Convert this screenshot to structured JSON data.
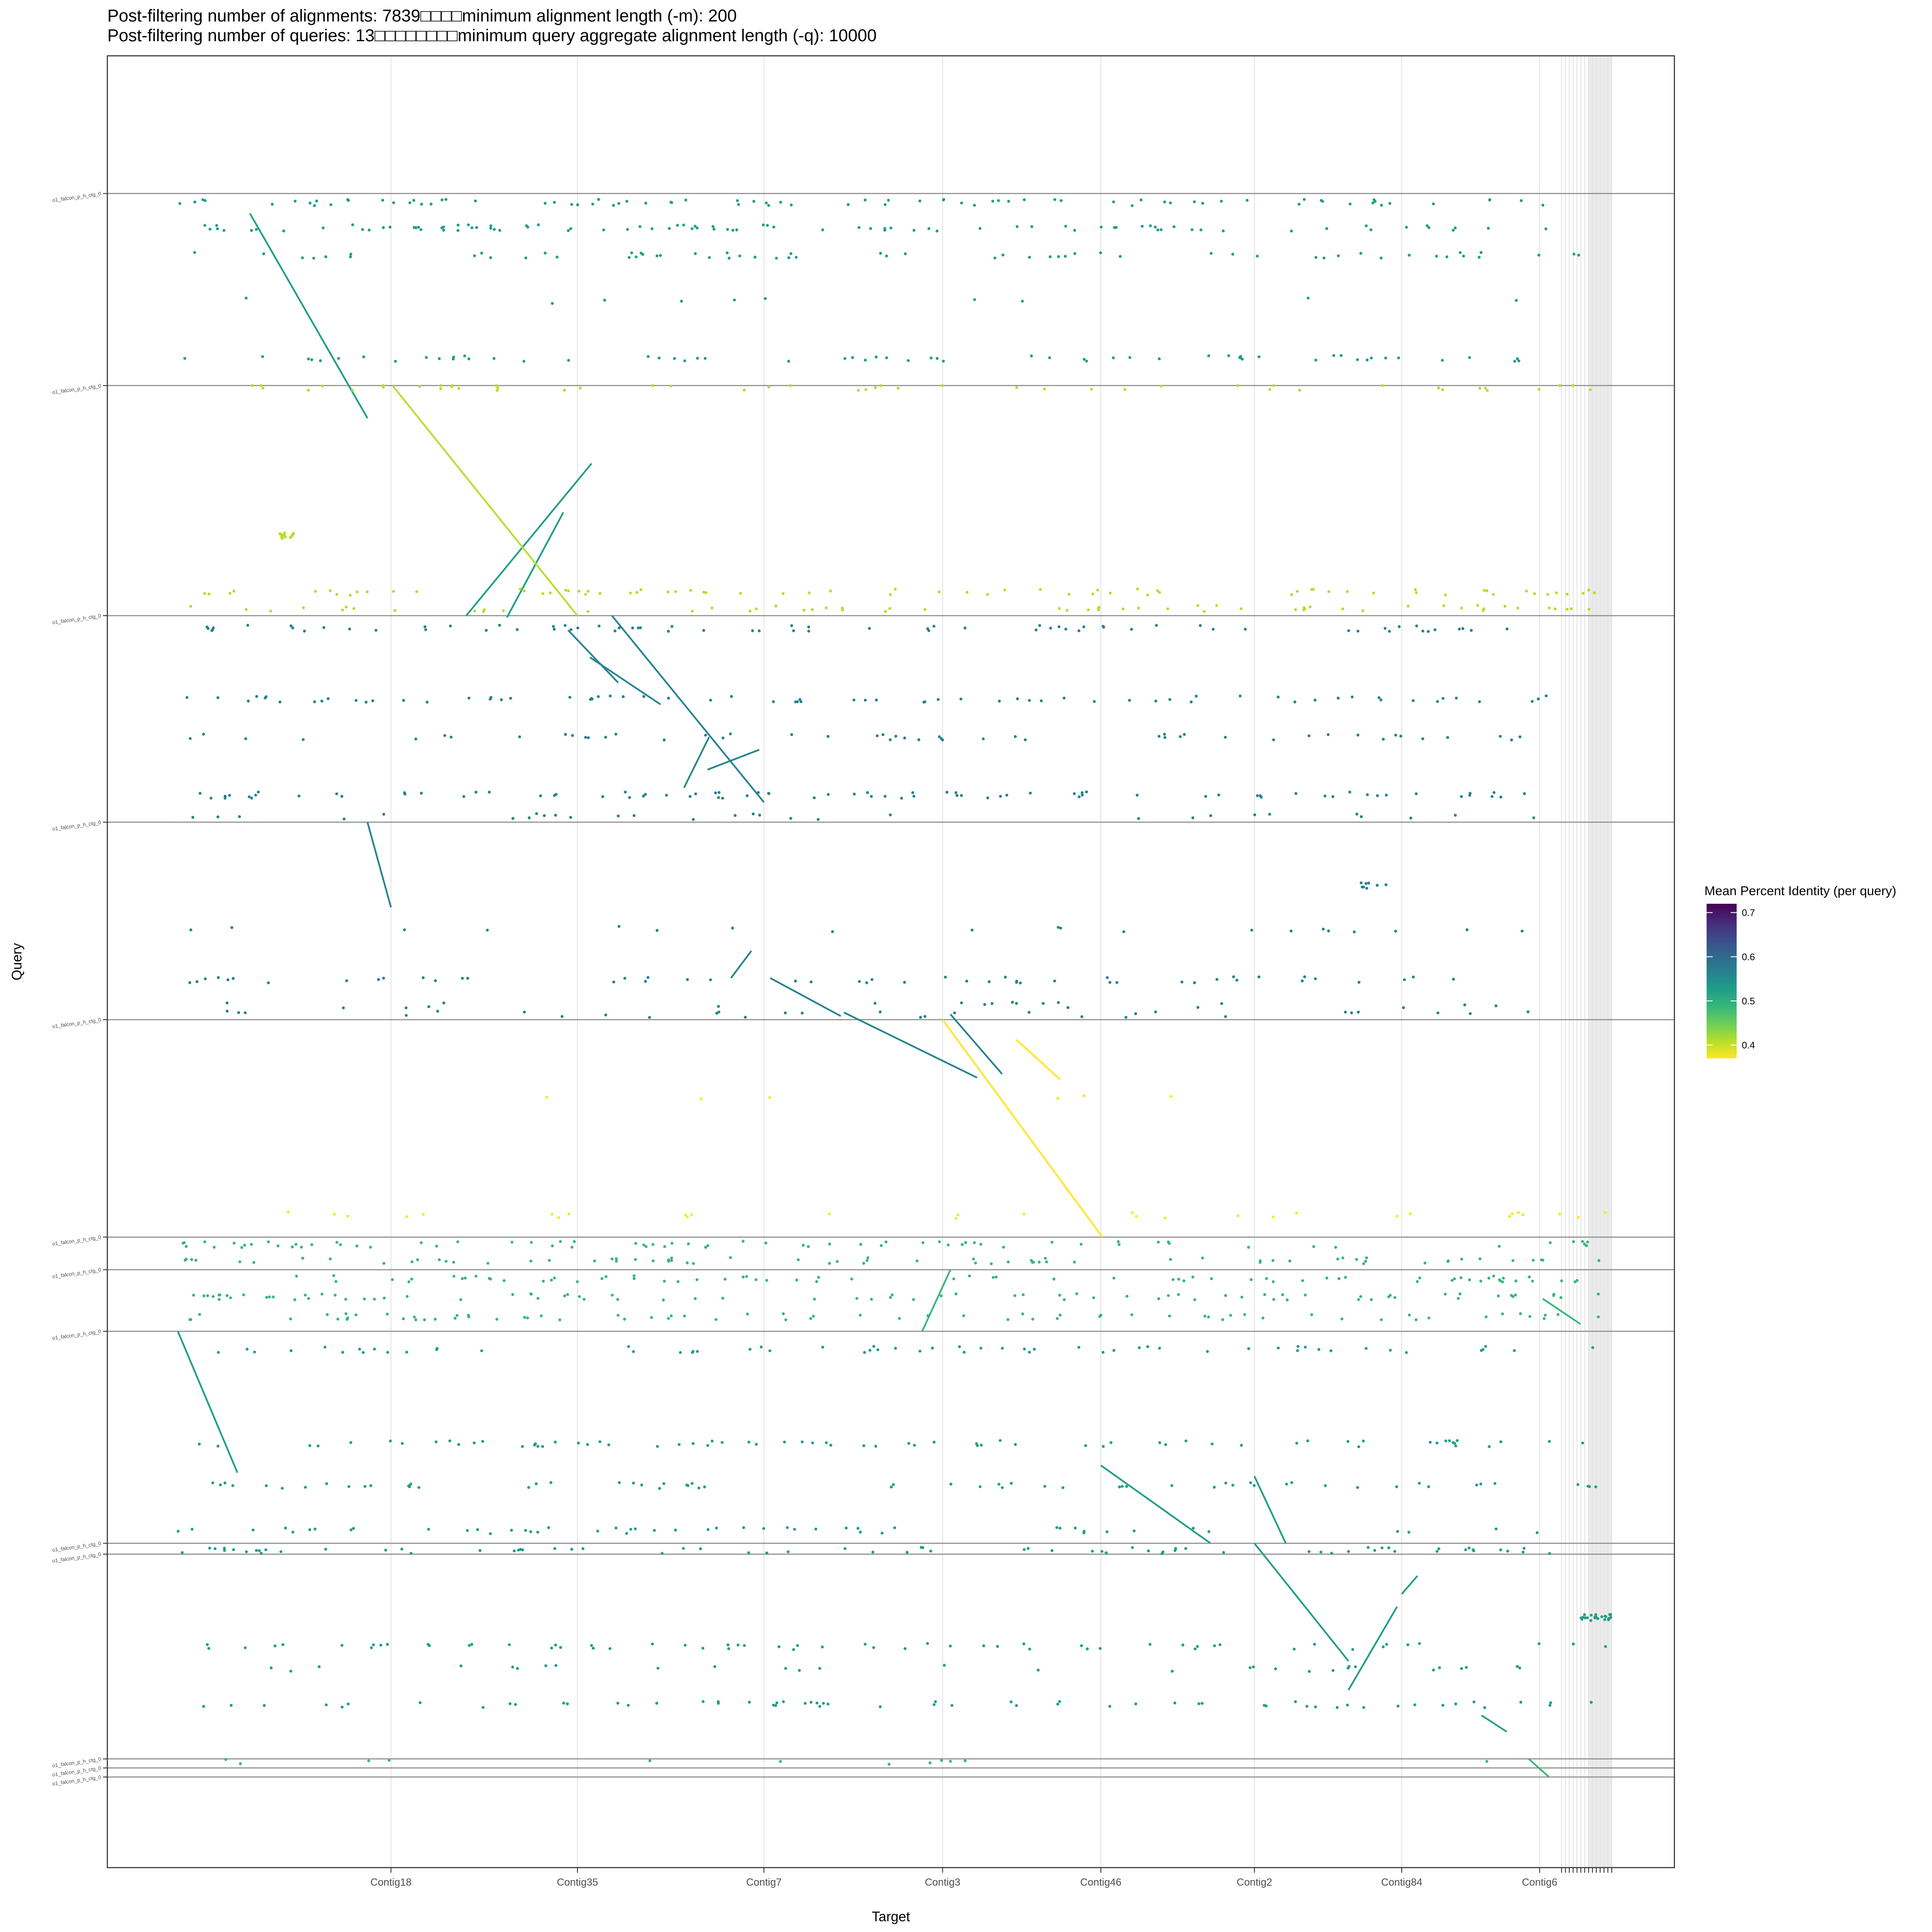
{
  "chart_data": {
    "type": "scatter",
    "title": [
      "Post-filtering number of alignments: 7839□□□□minimum alignment length (-m): 200",
      "Post-filtering number of queries: 13□□□□□□□□minimum query aggregate alignment length (-q): 10000"
    ],
    "xlabel": "Target",
    "ylabel": "Query",
    "xlim": [
      0,
      100
    ],
    "ylim": [
      0,
      100
    ],
    "grid": true,
    "x_ticks": [
      {
        "label": "Contig18",
        "x": 18.1
      },
      {
        "label": "Contig35",
        "x": 30.0
      },
      {
        "label": "Contig7",
        "x": 41.9
      },
      {
        "label": "Contig3",
        "x": 53.3
      },
      {
        "label": "Contig46",
        "x": 63.4
      },
      {
        "label": "Contig2",
        "x": 73.2
      },
      {
        "label": "Contig84",
        "x": 82.6
      },
      {
        "label": "Contig6",
        "x": 91.4
      }
    ],
    "x_dense_tick_start": 92.8,
    "x_dense_tick_end": 96.0,
    "x_dense_tick_count": 14,
    "shaded_region": [
      94.5,
      96.0
    ],
    "query_boundaries": [
      7.6,
      18.2,
      30.9,
      42.3,
      53.2,
      65.2,
      67.0,
      70.4,
      82.1,
      82.7,
      94.0,
      94.5,
      95.0
    ],
    "query_label": "o1_falcon_p_h_ctg_0",
    "legend": {
      "title": "Mean Percent Identity (per query)",
      "placement": "right",
      "min": 0.37,
      "max": 0.72,
      "ticks": [
        0.4,
        0.5,
        0.6,
        0.7
      ],
      "colors": [
        "#fde725",
        "#b5de2b",
        "#6ece58",
        "#35b779",
        "#1f9e89",
        "#26828e",
        "#31688e",
        "#3e4989",
        "#482878",
        "#440154"
      ]
    },
    "series": [
      {
        "query_range": [
          7.6,
          18.2
        ],
        "identity": 0.54,
        "color": "#1f9e89",
        "diagonals": [
          [
            8.7,
            9.1,
            20.0,
            16.6
          ],
          [
            22.5,
            30.9,
            30.9,
            22.9
          ],
          [
            25.2,
            29.1,
            31.0,
            25.5
          ]
        ],
        "bands": [
          [
            13.5,
            4.5,
            95.0,
            10
          ],
          [
            11.0,
            5.3,
            95.0,
            60
          ],
          [
            9.5,
            4.5,
            92.0,
            90
          ],
          [
            8.1,
            4.5,
            92.0,
            80
          ],
          [
            16.7,
            4.5,
            92.0,
            60
          ]
        ]
      },
      {
        "query_range": [
          18.2,
          30.9
        ],
        "identity": 0.405,
        "color": "#b5de2b",
        "diagonals": [
          [
            18.2,
            18.2,
            30.9,
            30.0
          ]
        ],
        "bands": [
          [
            30.5,
            4.5,
            95.0,
            60
          ],
          [
            29.6,
            4.5,
            95.0,
            70
          ],
          [
            18.3,
            4.5,
            95.0,
            50
          ],
          [
            26.5,
            11.0,
            12.0,
            15
          ]
        ]
      },
      {
        "query_range": [
          30.9,
          42.3
        ],
        "identity": 0.61,
        "color": "#26828e",
        "diagonals": [
          [
            30.9,
            32.2,
            41.2,
            41.9
          ],
          [
            31.7,
            29.4,
            34.6,
            32.6
          ],
          [
            33.2,
            30.8,
            35.8,
            35.3
          ],
          [
            37.6,
            38.4,
            40.4,
            36.8
          ],
          [
            38.3,
            41.6,
            39.4,
            38.3
          ]
        ],
        "bands": [
          [
            31.6,
            4.5,
            92.0,
            70
          ],
          [
            35.5,
            4.5,
            92.0,
            70
          ],
          [
            37.6,
            4.5,
            92.0,
            50
          ],
          [
            40.8,
            4.5,
            92.0,
            80
          ],
          [
            42.0,
            4.5,
            92.0,
            30
          ]
        ]
      },
      {
        "query_range": [
          42.3,
          53.2
        ],
        "identity": 0.61,
        "color": "#26828e",
        "diagonals": [
          [
            42.3,
            16.6,
            47.0,
            18.1
          ],
          [
            49.4,
            41.1,
            50.9,
            39.8
          ],
          [
            50.9,
            42.3,
            53.0,
            46.8
          ],
          [
            52.8,
            47.0,
            56.4,
            55.5
          ],
          [
            52.9,
            53.8,
            56.2,
            57.1
          ]
        ],
        "bands": [
          [
            51.0,
            4.5,
            92.0,
            50
          ],
          [
            52.4,
            4.5,
            92.0,
            20
          ],
          [
            48.2,
            4.5,
            92.0,
            20
          ],
          [
            45.8,
            80.0,
            82.0,
            8
          ],
          [
            52.9,
            4.5,
            92.0,
            30
          ]
        ]
      },
      {
        "query_range": [
          53.2,
          65.2
        ],
        "identity": 0.37,
        "color": "#fde725",
        "diagonals": [
          [
            53.2,
            53.3,
            65.2,
            63.5
          ],
          [
            54.3,
            58.0,
            56.5,
            60.8
          ]
        ],
        "bands": [
          [
            64.0,
            4.5,
            96.0,
            30
          ],
          [
            57.5,
            25.0,
            71.0,
            6
          ]
        ]
      },
      {
        "query_range": [
          65.2,
          67.0
        ],
        "identity": 0.5,
        "color": "#35b779",
        "diagonals": [],
        "bands": [
          [
            65.6,
            4.5,
            96.0,
            70
          ],
          [
            66.5,
            4.5,
            96.0,
            70
          ]
        ]
      },
      {
        "query_range": [
          67.0,
          70.4
        ],
        "identity": 0.5,
        "color": "#35b779",
        "diagonals": [
          [
            67.0,
            53.8,
            70.4,
            52.0
          ],
          [
            68.6,
            91.6,
            70.0,
            94.0
          ]
        ],
        "bands": [
          [
            67.5,
            4.5,
            96.0,
            70
          ],
          [
            68.5,
            4.5,
            96.0,
            80
          ],
          [
            69.6,
            4.5,
            96.0,
            70
          ]
        ]
      },
      {
        "query_range": [
          70.4,
          82.1
        ],
        "identity": 0.55,
        "color": "#1f9e89",
        "diagonals": [
          [
            70.4,
            4.5,
            78.2,
            8.3
          ],
          [
            82.1,
            70.4,
            77.8,
            63.4
          ],
          [
            78.4,
            73.2,
            82.1,
            75.2
          ]
        ],
        "bands": [
          [
            71.4,
            4.5,
            96.0,
            60
          ],
          [
            76.6,
            4.5,
            96.0,
            70
          ],
          [
            78.9,
            4.5,
            96.0,
            60
          ],
          [
            81.4,
            4.5,
            96.0,
            50
          ]
        ]
      },
      {
        "query_range": [
          82.1,
          94.0
        ],
        "identity": 0.53,
        "color": "#1f9e89",
        "diagonals": [
          [
            82.1,
            73.2,
            88.6,
            79.2
          ],
          [
            90.2,
            79.2,
            85.6,
            82.3
          ],
          [
            84.9,
            82.6,
            83.9,
            83.6
          ],
          [
            91.6,
            87.7,
            92.5,
            89.3
          ]
        ],
        "bands": [
          [
            82.5,
            4.5,
            96.0,
            70
          ],
          [
            87.8,
            4.5,
            96.0,
            60
          ],
          [
            91.0,
            4.5,
            96.0,
            60
          ],
          [
            86.2,
            94.0,
            96.0,
            25
          ],
          [
            89.0,
            4.5,
            92.0,
            30
          ]
        ]
      },
      {
        "query_range": [
          94.0,
          95.0
        ],
        "identity": 0.5,
        "color": "#35b779",
        "diagonals": [
          [
            94.0,
            90.7,
            95.0,
            92.0
          ]
        ],
        "bands": [
          [
            94.2,
            6.0,
            96.0,
            12
          ]
        ]
      }
    ]
  }
}
